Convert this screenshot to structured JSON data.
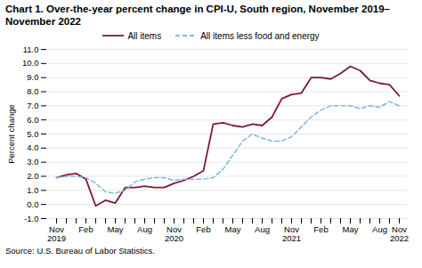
{
  "chart_data": {
    "type": "line",
    "title": "Chart 1. Over-the-year percent change in CPI-U, South region, November 2019–November 2022",
    "ylabel": "Percent change",
    "caption": "Source: U.S. Bureau of Labor Statistics.",
    "categories": [
      "Nov\n2019",
      null,
      null,
      "Feb",
      null,
      null,
      "May",
      null,
      null,
      "Aug",
      null,
      null,
      "Nov\n2020",
      null,
      null,
      "Feb",
      null,
      null,
      "May",
      null,
      null,
      "Aug",
      null,
      null,
      "Nov\n2021",
      null,
      null,
      "Feb",
      null,
      null,
      "May",
      null,
      null,
      "Aug",
      null,
      "Nov\n2022"
    ],
    "series": [
      {
        "name": "All items",
        "color": "#7B1A35",
        "line_style": "solid",
        "values": [
          1.9,
          2.1,
          2.2,
          1.8,
          -0.1,
          0.3,
          0.1,
          1.2,
          1.2,
          1.3,
          1.2,
          1.2,
          1.5,
          1.7,
          2.0,
          2.4,
          5.7,
          5.8,
          5.6,
          5.5,
          5.7,
          5.6,
          6.2,
          7.5,
          7.8,
          7.9,
          9.0,
          9.0,
          8.9,
          9.3,
          9.8,
          9.5,
          8.8,
          8.6,
          8.5,
          7.7
        ]
      },
      {
        "name": "All items less food and energy",
        "color": "#7FBADC",
        "line_style": "dashed",
        "values": [
          1.9,
          2.0,
          2.0,
          1.9,
          1.5,
          0.9,
          0.8,
          1.0,
          1.6,
          1.8,
          1.9,
          1.9,
          1.7,
          1.8,
          1.8,
          1.8,
          1.9,
          2.5,
          3.5,
          4.5,
          5.0,
          4.7,
          4.5,
          4.5,
          4.8,
          5.5,
          6.2,
          6.7,
          7.0,
          7.0,
          7.0,
          6.8,
          7.0,
          6.9,
          7.3,
          7.0
        ]
      }
    ],
    "ylim": [
      -1.0,
      11.0
    ],
    "yticks": [
      {
        "value": -1,
        "label": "-1.0"
      },
      {
        "value": 0,
        "label": "0.0"
      },
      {
        "value": 1,
        "label": "1.0"
      },
      {
        "value": 2,
        "label": "2.0"
      },
      {
        "value": 3,
        "label": "3.0"
      },
      {
        "value": 4,
        "label": "4.0"
      },
      {
        "value": 5,
        "label": "5.0"
      },
      {
        "value": 6,
        "label": "6.0"
      },
      {
        "value": 7,
        "label": "7.0"
      },
      {
        "value": 8,
        "label": "8.0"
      },
      {
        "value": 9,
        "label": "9.0"
      },
      {
        "value": 10,
        "label": "10.0"
      },
      {
        "value": 11,
        "label": "11.0"
      }
    ],
    "grid": true,
    "legend": "top"
  }
}
